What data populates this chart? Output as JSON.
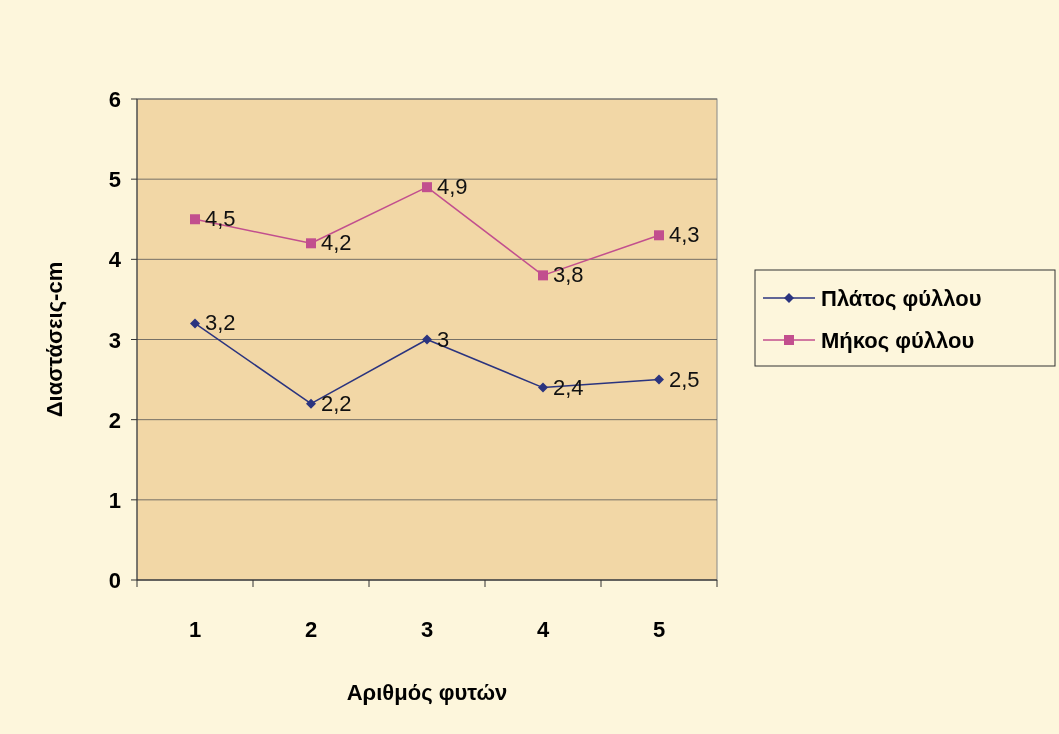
{
  "chart_data": {
    "type": "line",
    "xlabel": "Αριθμός φυτών",
    "ylabel": "Διαστάσεις-cm",
    "categories": [
      "1",
      "2",
      "3",
      "4",
      "5"
    ],
    "series": [
      {
        "name": "Πλάτος φύλλου",
        "color": "#2b347f",
        "marker": "diamond",
        "values": [
          3.2,
          2.2,
          3,
          2.4,
          2.5
        ],
        "value_labels": [
          "3,2",
          "2,2",
          "3",
          "2,4",
          "2,5"
        ]
      },
      {
        "name": "Μήκος φύλλου",
        "color": "#c24f8e",
        "marker": "square",
        "values": [
          4.5,
          4.2,
          4.9,
          3.8,
          4.3
        ],
        "value_labels": [
          "4,5",
          "4,2",
          "4,9",
          "3,8",
          "4,3"
        ]
      }
    ],
    "ylim": [
      0,
      6
    ],
    "yticks": [
      0,
      1,
      2,
      3,
      4,
      5,
      6
    ],
    "grid": "y",
    "legend": "right"
  }
}
